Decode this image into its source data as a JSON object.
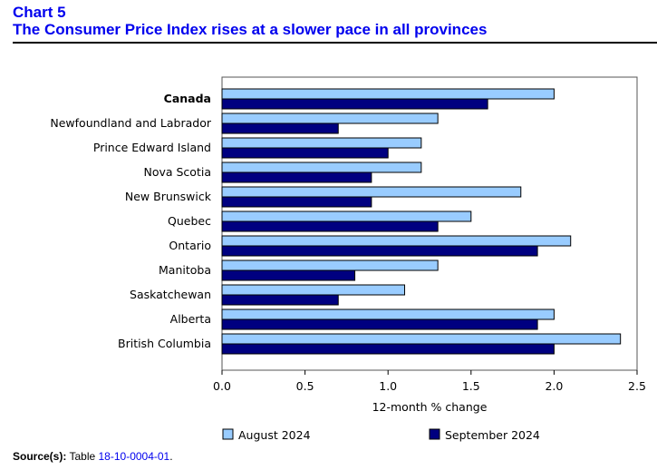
{
  "header": {
    "chart_label": "Chart 5",
    "title": "The Consumer Price Index rises at a slower pace in all provinces"
  },
  "source": {
    "label": "Source(s):",
    "text": "Table",
    "link": "18-10-0004-01",
    "end": "."
  },
  "colors": {
    "august": "#99ccff",
    "september": "#000080"
  },
  "chart_data": {
    "type": "bar",
    "orientation": "horizontal",
    "title": "The Consumer Price Index rises at a slower pace in all provinces",
    "xlabel": "12-month % change",
    "ylabel": "",
    "xlim": [
      0,
      2.5
    ],
    "ticks": [
      "0.0",
      "0.5",
      "1.0",
      "1.5",
      "2.0",
      "2.5"
    ],
    "grid": false,
    "legend": "bottom",
    "categories": [
      "Canada",
      "Newfoundland and Labrador",
      "Prince Edward Island",
      "Nova Scotia",
      "New Brunswick",
      "Quebec",
      "Ontario",
      "Manitoba",
      "Saskatchewan",
      "Alberta",
      "British Columbia"
    ],
    "series": [
      {
        "name": "August 2024",
        "values": [
          2.0,
          1.3,
          1.2,
          1.2,
          1.8,
          1.5,
          2.1,
          1.3,
          1.1,
          2.0,
          2.4
        ]
      },
      {
        "name": "September 2024",
        "values": [
          1.6,
          0.7,
          1.0,
          0.9,
          0.9,
          1.3,
          1.9,
          0.8,
          0.7,
          1.9,
          2.0
        ]
      }
    ]
  }
}
